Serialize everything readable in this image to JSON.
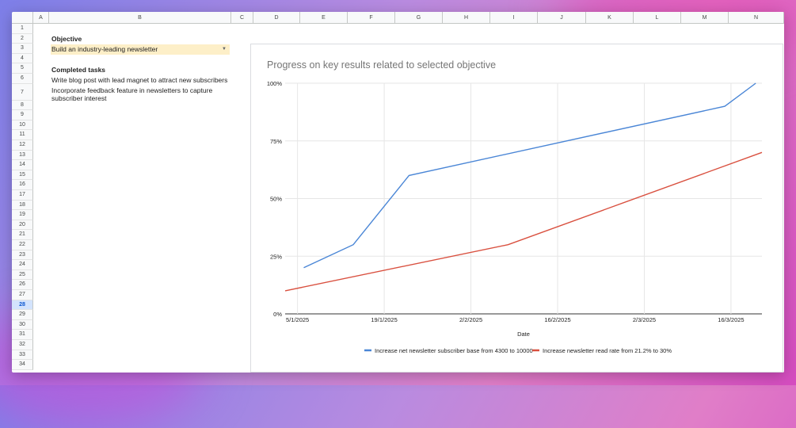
{
  "columns": [
    "A",
    "B",
    "C",
    "D",
    "E",
    "F",
    "G",
    "H",
    "I",
    "J",
    "K",
    "L",
    "M",
    "N"
  ],
  "rows": [
    "1",
    "2",
    "3",
    "4",
    "5",
    "6",
    "7",
    "8",
    "9",
    "10",
    "11",
    "12",
    "13",
    "14",
    "15",
    "16",
    "17",
    "18",
    "19",
    "20",
    "21",
    "22",
    "23",
    "24",
    "25",
    "26",
    "27",
    "28",
    "29",
    "30",
    "31",
    "32",
    "33",
    "34"
  ],
  "active_row": "28",
  "objective": {
    "label": "Objective",
    "value": "Build an industry-leading newsletter"
  },
  "completed": {
    "label": "Completed tasks",
    "tasks": [
      "Write blog post with lead magnet to attract new subscribers",
      "Incorporate feedback feature in newsletters to capture",
      "subscriber interest"
    ]
  },
  "colors": {
    "blue_series": "#4a86d6",
    "red_series": "#d9503f",
    "dropdown_fill": "#fdefc8"
  },
  "chart_data": {
    "type": "line",
    "title": "Progress on key results related to selected objective",
    "xlabel": "Date",
    "ylabel": "",
    "x_ticks": [
      "5/1/2025",
      "19/1/2025",
      "2/2/2025",
      "16/2/2025",
      "2/3/2025",
      "16/3/2025"
    ],
    "y_ticks": [
      "0%",
      "25%",
      "50%",
      "75%",
      "100%"
    ],
    "xlim": [
      "2025-01-03",
      "2025-03-21"
    ],
    "ylim": [
      0,
      100
    ],
    "grid": true,
    "legend_position": "bottom",
    "series": [
      {
        "name": "Increase net newsletter subscriber base from 4300 to 10000",
        "color": "#4a86d6",
        "points": [
          {
            "x": "2025-01-06",
            "y": 20
          },
          {
            "x": "2025-01-14",
            "y": 30
          },
          {
            "x": "2025-01-23",
            "y": 60
          },
          {
            "x": "2025-03-15",
            "y": 90
          },
          {
            "x": "2025-03-20",
            "y": 100
          }
        ]
      },
      {
        "name": "Increase newsletter read rate from 21.2% to 30%",
        "color": "#d9503f",
        "points": [
          {
            "x": "2025-01-03",
            "y": 10
          },
          {
            "x": "2025-02-08",
            "y": 30
          },
          {
            "x": "2025-03-21",
            "y": 70
          }
        ]
      }
    ]
  }
}
